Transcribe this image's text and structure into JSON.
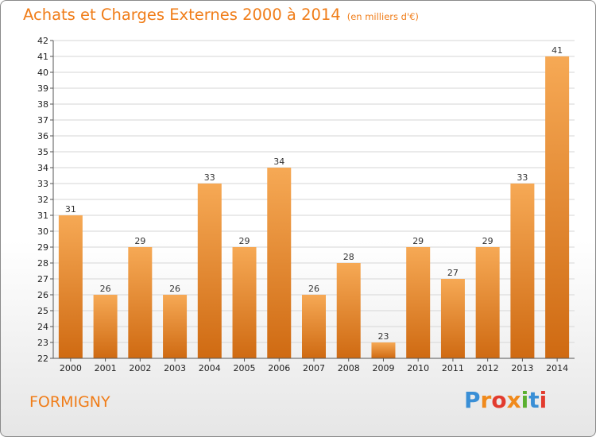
{
  "title": "Achats et Charges Externes 2000 à 2014",
  "unit_note": "(en milliers d'€)",
  "commune": "FORMIGNY",
  "logo": {
    "text": "Proxiti",
    "letter_colors": [
      "#3a8fd6",
      "#f08a1c",
      "#e23b2e",
      "#f08a1c",
      "#5bb030",
      "#3a8fd6",
      "#e23b2e"
    ]
  },
  "colors": {
    "accent": "#f07d19",
    "bar_top": "#f6a955",
    "bar_bottom": "#cf6a12",
    "grid": "#d6d6d6"
  },
  "chart_data": {
    "type": "bar",
    "categories": [
      "2000",
      "2001",
      "2002",
      "2003",
      "2004",
      "2005",
      "2006",
      "2007",
      "2008",
      "2009",
      "2010",
      "2011",
      "2012",
      "2013",
      "2014"
    ],
    "values": [
      31,
      26,
      29,
      26,
      33,
      29,
      34,
      26,
      28,
      23,
      29,
      27,
      29,
      33,
      41
    ],
    "ylim": [
      22,
      42
    ],
    "yticks": [
      22,
      23,
      24,
      25,
      26,
      27,
      28,
      29,
      30,
      31,
      32,
      33,
      34,
      35,
      36,
      37,
      38,
      39,
      40,
      41,
      42
    ],
    "grid": true,
    "legend": "none"
  }
}
